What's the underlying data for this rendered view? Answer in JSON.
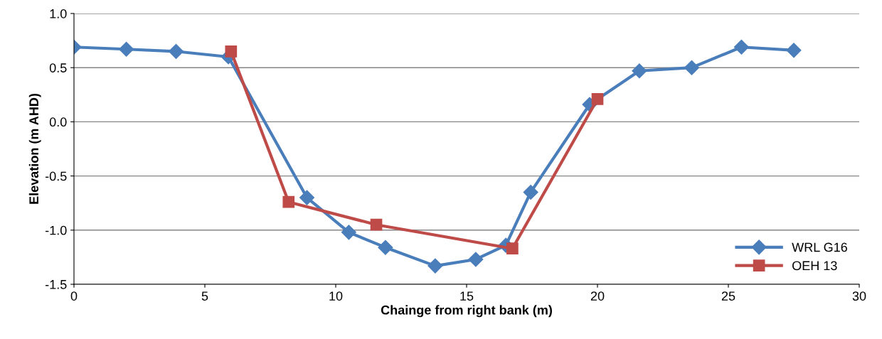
{
  "chart_data": {
    "type": "line",
    "xlabel": "Chainge from right bank (m)",
    "ylabel": "Elevation (m AHD)",
    "xlim": [
      0,
      30
    ],
    "xticks": [
      0,
      5,
      10,
      15,
      20,
      25,
      30
    ],
    "ylim": [
      -1.5,
      1.0
    ],
    "yticks": [
      {
        "value": -1.5,
        "label": "-1.5"
      },
      {
        "value": -1.0,
        "label": "-1.0"
      },
      {
        "value": -0.5,
        "label": "-0.5"
      },
      {
        "value": 0.0,
        "label": "0.0"
      },
      {
        "value": 0.5,
        "label": "0.5"
      },
      {
        "value": 1.0,
        "label": "1.0"
      }
    ],
    "grid": "y",
    "legend": "bottom right",
    "series": [
      {
        "name": "WRL G16",
        "color": "#4a7ebb",
        "marker": "diamond",
        "x": [
          0,
          2.0,
          3.9,
          5.9,
          8.9,
          10.5,
          11.9,
          13.8,
          15.35,
          16.5,
          17.45,
          19.7,
          21.6,
          23.6,
          25.5,
          27.5
        ],
        "values": [
          0.69,
          0.67,
          0.65,
          0.6,
          -0.7,
          -1.02,
          -1.16,
          -1.33,
          -1.27,
          -1.14,
          -0.65,
          0.16,
          0.47,
          0.5,
          0.69,
          0.66
        ]
      },
      {
        "name": "OEH 13",
        "color": "#be4b48",
        "marker": "square",
        "x": [
          6.0,
          8.2,
          11.55,
          16.75,
          20.0
        ],
        "values": [
          0.65,
          -0.74,
          -0.95,
          -1.17,
          0.21
        ]
      }
    ]
  }
}
